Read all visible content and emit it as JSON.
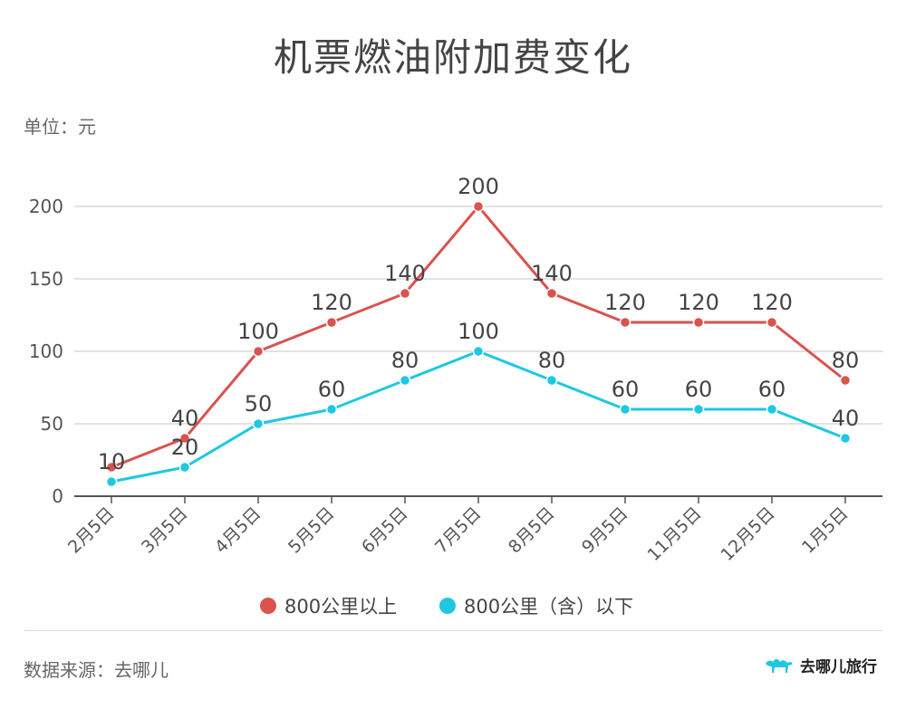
{
  "title": "机票燃油附加费变化",
  "unit": "单位：元",
  "source": "数据来源：去哪儿",
  "brand": "去哪儿旅行",
  "colors": {
    "series1": "#d9534f",
    "series2": "#1ec8e1",
    "grid": "#d9d9d9",
    "axis": "#555555",
    "text": "#444444"
  },
  "chart_data": {
    "type": "line",
    "categories": [
      "2月5日",
      "3月5日",
      "4月5日",
      "5月5日",
      "6月5日",
      "7月5日",
      "8月5日",
      "9月5日",
      "11月5日",
      "12月5日",
      "1月5日"
    ],
    "series": [
      {
        "name": "800公里以上",
        "values": [
          20,
          40,
          100,
          120,
          140,
          200,
          140,
          120,
          120,
          120,
          80
        ],
        "labels": [
          "",
          "40",
          "100",
          "120",
          "140",
          "200",
          "140",
          "120",
          "120",
          "120",
          "80"
        ]
      },
      {
        "name": "800公里（含）以下",
        "values": [
          10,
          20,
          50,
          60,
          80,
          100,
          80,
          60,
          60,
          60,
          40
        ],
        "labels": [
          "10",
          "20",
          "50",
          "60",
          "80",
          "100",
          "80",
          "60",
          "60",
          "60",
          "40"
        ]
      }
    ],
    "yticks": [
      "0",
      "50",
      "100",
      "150",
      "200"
    ],
    "ylim": [
      0,
      200
    ],
    "grid": true,
    "legend": "bottom"
  }
}
